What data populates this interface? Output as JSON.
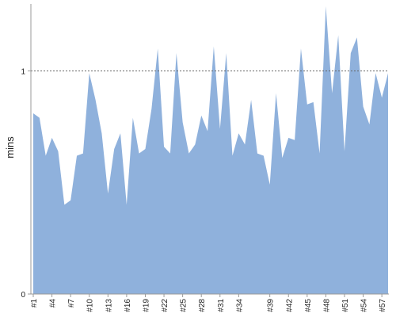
{
  "chart_data": {
    "type": "area",
    "title": "",
    "xlabel": "",
    "ylabel": "mins",
    "ylim": [
      0,
      1.3
    ],
    "yticks": [
      0,
      1
    ],
    "reference_line": 1,
    "grid": false,
    "legend": "none",
    "colors": {
      "area": "#8fb1dc",
      "axis": "#999999",
      "reference": "#666666"
    },
    "x": [
      "#1",
      "#2",
      "#3",
      "#4",
      "#5",
      "#6",
      "#7",
      "#8",
      "#9",
      "#10",
      "#11",
      "#12",
      "#13",
      "#14",
      "#15",
      "#16",
      "#17",
      "#18",
      "#19",
      "#20",
      "#21",
      "#22",
      "#23",
      "#24",
      "#25",
      "#26",
      "#27",
      "#28",
      "#29",
      "#30",
      "#31",
      "#32",
      "#33",
      "#34",
      "#35",
      "#36",
      "#37",
      "#38",
      "#39",
      "#40",
      "#41",
      "#42",
      "#43",
      "#44",
      "#45",
      "#46",
      "#47",
      "#48",
      "#49",
      "#50",
      "#51",
      "#52",
      "#53",
      "#54",
      "#55",
      "#56",
      "#57",
      "#58"
    ],
    "x_tick_labels": [
      "#1",
      "#4",
      "#7",
      "#10",
      "#13",
      "#16",
      "#19",
      "#22",
      "#25",
      "#28",
      "#31",
      "#34",
      "#39",
      "#42",
      "#45",
      "#48",
      "#51",
      "#54",
      "#57"
    ],
    "series": [
      {
        "values": [
          0.81,
          0.79,
          0.62,
          0.7,
          0.64,
          0.4,
          0.42,
          0.62,
          0.63,
          0.99,
          0.87,
          0.72,
          0.45,
          0.65,
          0.72,
          0.4,
          0.79,
          0.63,
          0.65,
          0.83,
          1.1,
          0.66,
          0.63,
          1.08,
          0.77,
          0.63,
          0.67,
          0.8,
          0.73,
          1.11,
          0.74,
          1.08,
          0.62,
          0.72,
          0.67,
          0.87,
          0.63,
          0.62,
          0.49,
          0.9,
          0.61,
          0.7,
          0.69,
          1.1,
          0.85,
          0.86,
          0.63,
          1.29,
          0.9,
          1.16,
          0.64,
          1.08,
          1.15,
          0.84,
          0.76,
          0.99,
          0.88,
          0.99
        ]
      }
    ]
  }
}
